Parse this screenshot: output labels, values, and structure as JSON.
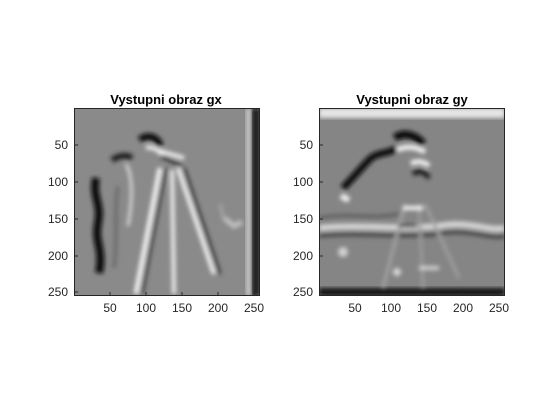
{
  "figure": {
    "background": "#ffffff",
    "axis_color": "#262626"
  },
  "plots": [
    {
      "title": "Vystupni obraz gx",
      "yticks": [
        "50",
        "100",
        "150",
        "200",
        "250"
      ],
      "xticks": [
        "50",
        "100",
        "150",
        "200",
        "250"
      ],
      "colormap": "gray"
    },
    {
      "title": "Vystupni obraz gy",
      "yticks": [
        "50",
        "100",
        "150",
        "200",
        "250"
      ],
      "xticks": [
        "50",
        "100",
        "150",
        "200",
        "250"
      ],
      "colormap": "gray"
    }
  ]
}
